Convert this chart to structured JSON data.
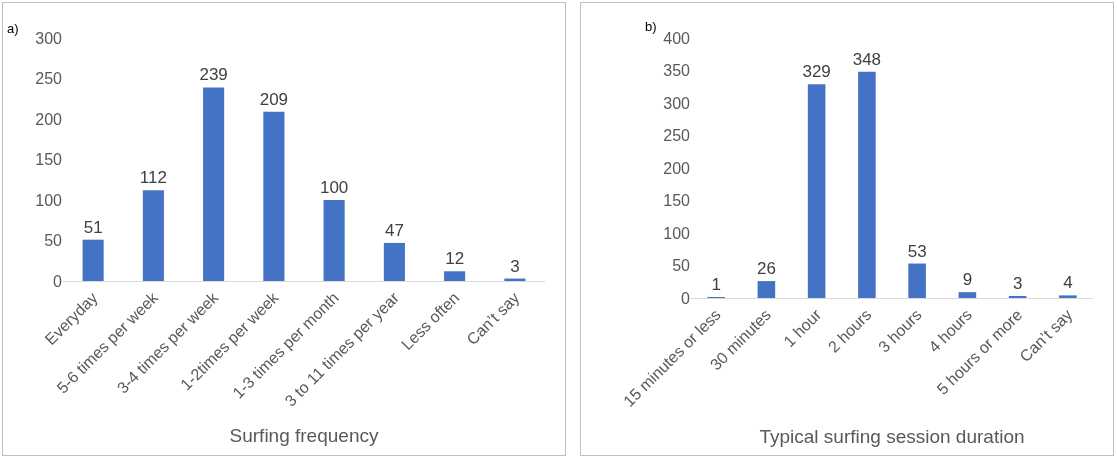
{
  "chart_data": [
    {
      "type": "bar",
      "annotations": [
        "a)"
      ],
      "xlabel": "Surfing frequency",
      "categories": [
        "Everyday",
        "5-6 times per week",
        "3-4 times per week",
        "1-2times per week",
        "1-3 times per month",
        "3 to 11 times per year",
        "Less often",
        "Can’t say"
      ],
      "values": [
        51,
        112,
        239,
        209,
        100,
        47,
        12,
        3
      ],
      "color": "#4472c4",
      "ylim": [
        0,
        300
      ],
      "yticks": [
        0,
        50,
        100,
        150,
        200,
        250,
        300
      ],
      "data_labels": true
    },
    {
      "type": "bar",
      "annotations": [
        "b)"
      ],
      "xlabel": "Typical surfing session duration",
      "categories": [
        "15 minutes or less",
        "30 minutes",
        "1 hour",
        "2 hours",
        "3 hours",
        "4 hours",
        "5 hours or more",
        "Can’t say"
      ],
      "values": [
        1,
        26,
        329,
        348,
        53,
        9,
        3,
        4
      ],
      "color": "#4472c4",
      "ylim": [
        0,
        400
      ],
      "yticks": [
        0,
        50,
        100,
        150,
        200,
        250,
        300,
        350,
        400
      ],
      "data_labels": true
    }
  ]
}
